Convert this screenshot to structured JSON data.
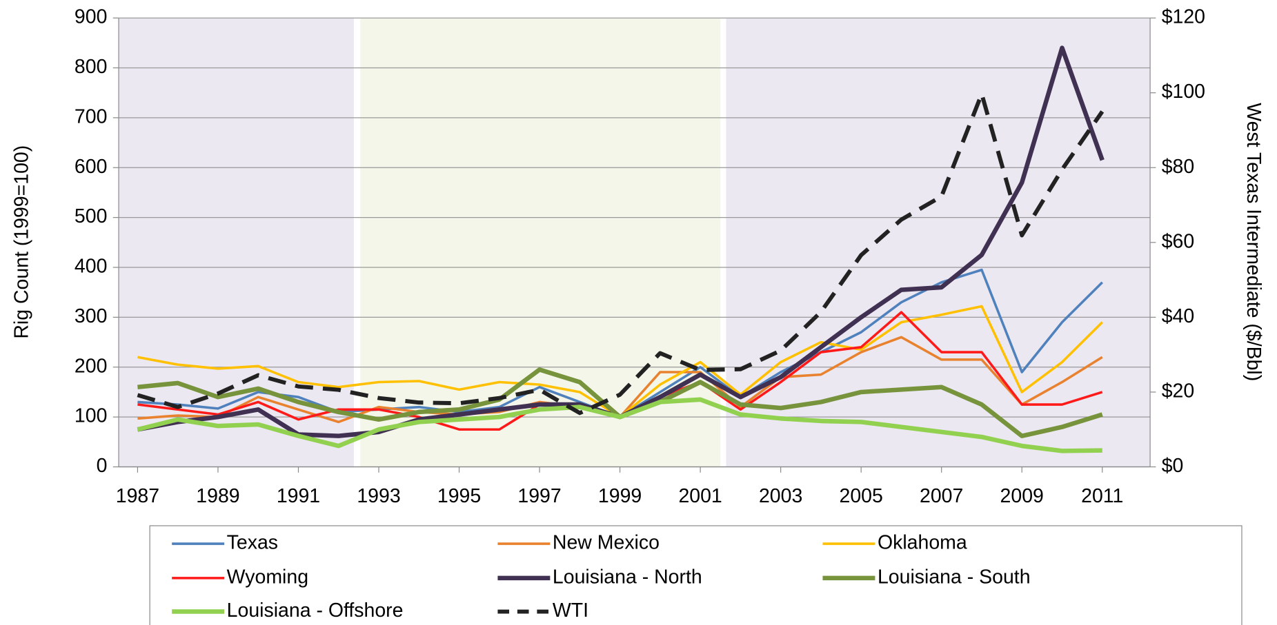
{
  "chart_data": {
    "type": "line",
    "y_label": "Rig Count (1999=100)",
    "y2_label": "West Texas Intermediate ($/Bbl)",
    "x": [
      1987,
      1988,
      1989,
      1990,
      1991,
      1992,
      1993,
      1994,
      1995,
      1996,
      1997,
      1998,
      1999,
      2000,
      2001,
      2002,
      2003,
      2004,
      2005,
      2006,
      2007,
      2008,
      2009,
      2010,
      2011
    ],
    "xlim": [
      1986.53,
      2012.19
    ],
    "xticks": [
      1987,
      1989,
      1991,
      1993,
      1995,
      1997,
      1999,
      2001,
      2003,
      2005,
      2007,
      2009,
      2011
    ],
    "ylim": [
      0,
      900
    ],
    "yticks": [
      0,
      100,
      200,
      300,
      400,
      500,
      600,
      700,
      800,
      900
    ],
    "y2lim": [
      0,
      120
    ],
    "y2ticks": [
      {
        "value": 0,
        "label": "$0"
      },
      {
        "value": 20,
        "label": "$20"
      },
      {
        "value": 40,
        "label": "$40"
      },
      {
        "value": 60,
        "label": "$60"
      },
      {
        "value": 80,
        "label": "$80"
      },
      {
        "value": 100,
        "label": "$100"
      },
      {
        "value": 120,
        "label": "$120"
      }
    ],
    "grid": true,
    "regions": [
      {
        "start": 1986.53,
        "end": 1992.38,
        "color": "#ece8f2"
      },
      {
        "start": 1992.54,
        "end": 2001.5,
        "color": "#f3f6e8"
      },
      {
        "start": 2001.64,
        "end": 2012.19,
        "color": "#ece8f2"
      }
    ],
    "legend": "bottom",
    "series": [
      {
        "name": "Texas",
        "color": "#4f81bd",
        "width": 3,
        "values": [
          130,
          125,
          117,
          150,
          140,
          110,
          115,
          120,
          110,
          120,
          160,
          130,
          100,
          150,
          200,
          140,
          190,
          230,
          270,
          330,
          370,
          395,
          190,
          290,
          370
        ]
      },
      {
        "name": "New Mexico",
        "color": "#e8822e",
        "width": 3,
        "values": [
          97,
          103,
          100,
          140,
          115,
          90,
          120,
          110,
          105,
          110,
          130,
          120,
          100,
          190,
          190,
          120,
          180,
          185,
          230,
          260,
          215,
          215,
          125,
          170,
          220
        ]
      },
      {
        "name": "Oklahoma",
        "color": "#ffc000",
        "width": 3,
        "values": [
          220,
          205,
          197,
          202,
          170,
          160,
          170,
          172,
          155,
          170,
          165,
          150,
          100,
          165,
          210,
          145,
          210,
          250,
          235,
          290,
          305,
          322,
          150,
          210,
          290
        ]
      },
      {
        "name": "Wyoming",
        "color": "#ff1a1a",
        "width": 3,
        "values": [
          125,
          115,
          105,
          130,
          95,
          115,
          115,
          100,
          75,
          75,
          125,
          125,
          100,
          140,
          170,
          115,
          170,
          230,
          240,
          310,
          230,
          230,
          125,
          125,
          150
        ]
      },
      {
        "name": "Louisiana - North",
        "color": "#403152",
        "width": 5.5,
        "values": [
          75,
          90,
          100,
          115,
          65,
          62,
          70,
          95,
          105,
          115,
          125,
          125,
          100,
          140,
          185,
          140,
          180,
          240,
          300,
          355,
          360,
          425,
          570,
          840,
          615
        ]
      },
      {
        "name": "Louisiana - South",
        "color": "#77933c",
        "width": 5.5,
        "values": [
          160,
          168,
          140,
          157,
          130,
          110,
          95,
          110,
          115,
          135,
          195,
          170,
          100,
          130,
          170,
          125,
          118,
          130,
          150,
          155,
          160,
          125,
          62,
          80,
          105
        ]
      },
      {
        "name": "Louisiana - Offshore",
        "color": "#92d050",
        "width": 5.5,
        "values": [
          75,
          95,
          82,
          85,
          62,
          42,
          75,
          90,
          95,
          100,
          115,
          120,
          100,
          130,
          135,
          105,
          97,
          92,
          90,
          80,
          70,
          60,
          42,
          32,
          33
        ]
      },
      {
        "name": "WTI",
        "color": "#222222",
        "width": 5,
        "dashed": true,
        "axis": "y2",
        "values": [
          19.2,
          16,
          19.6,
          24.5,
          21.5,
          20.6,
          18.4,
          17.2,
          17,
          18.4,
          20.6,
          14.4,
          19.3,
          30.4,
          25.9,
          26.1,
          31.1,
          41.4,
          56.6,
          66.1,
          72.3,
          99.7,
          61.9,
          79.5,
          95
        ]
      }
    ]
  }
}
